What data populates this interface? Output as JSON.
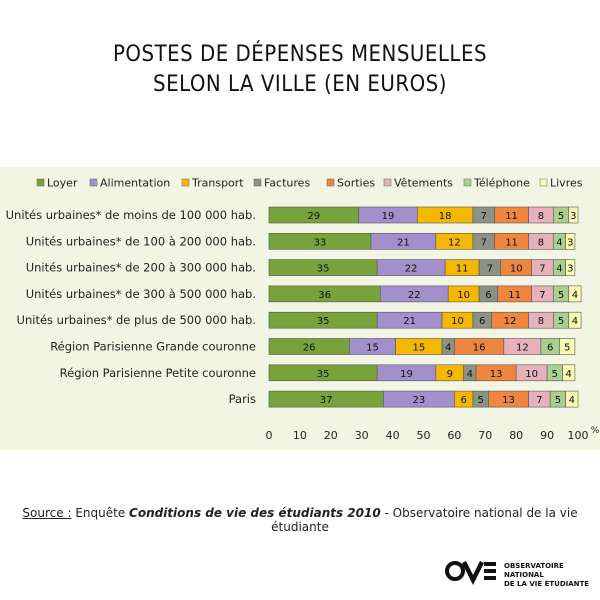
{
  "title": {
    "line1": "POSTES DE DÉPENSES MENSUELLES",
    "line2": "SELON LA VILLE (EN EUROS)"
  },
  "source": {
    "label": "Source :",
    "prefix": " Enquête ",
    "publication": "Conditions de vie des étudiants 2010",
    "suffix": " - Observatoire national de la vie étudiante"
  },
  "logo": {
    "line1": "OBSERVATOIRE NATIONAL",
    "line2": "DE LA VIE ÉTUDIANTE"
  },
  "chart_data": {
    "type": "bar",
    "orientation": "horizontal",
    "stacked": true,
    "categories": [
      "Unités urbaines* de moins de 100 000 hab.",
      "Unités urbaines* de 100 à 200 000 hab.",
      "Unités urbaines* de 200 à 300 000 hab.",
      "Unités urbaines* de 300 à 500 000 hab.",
      "Unités urbaines* de plus de 500 000 hab.",
      "Région Parisienne Grande couronne",
      "Région Parisienne Petite couronne",
      "Paris"
    ],
    "series": [
      {
        "name": "Loyer",
        "color": "#77a33a",
        "values": [
          29,
          33,
          35,
          36,
          35,
          26,
          35,
          37
        ]
      },
      {
        "name": "Alimentation",
        "color": "#a38fcc",
        "values": [
          19,
          21,
          22,
          22,
          21,
          15,
          19,
          23
        ]
      },
      {
        "name": "Transport",
        "color": "#f5b800",
        "values": [
          18,
          12,
          11,
          10,
          10,
          15,
          9,
          6
        ]
      },
      {
        "name": "Factures",
        "color": "#8c9285",
        "values": [
          7,
          7,
          7,
          6,
          6,
          4,
          4,
          5
        ]
      },
      {
        "name": "Sorties",
        "color": "#ef8640",
        "values": [
          11,
          11,
          10,
          11,
          12,
          16,
          13,
          13
        ]
      },
      {
        "name": "Vêtements",
        "color": "#e6b1bb",
        "values": [
          8,
          8,
          7,
          7,
          8,
          12,
          10,
          7
        ]
      },
      {
        "name": "Téléphone",
        "color": "#a9d08e",
        "values": [
          5,
          4,
          4,
          5,
          5,
          6,
          5,
          5
        ]
      },
      {
        "name": "Livres",
        "color": "#fafab4",
        "values": [
          3,
          3,
          3,
          4,
          4,
          5,
          4,
          4
        ]
      }
    ],
    "xlim": [
      0,
      100
    ],
    "xticks": [
      "0",
      "10",
      "20",
      "30",
      "40",
      "50",
      "60",
      "70",
      "80",
      "90",
      "100"
    ],
    "xunit": "%",
    "legend_position": "top",
    "grid": false
  }
}
